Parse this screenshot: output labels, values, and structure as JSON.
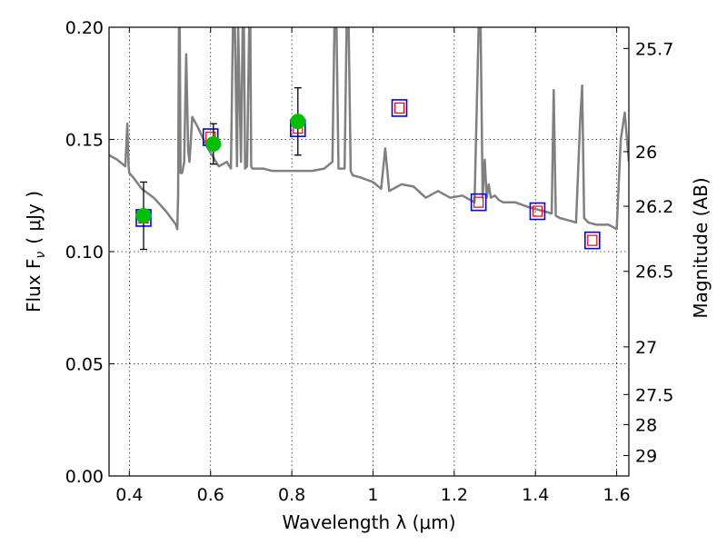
{
  "chart_data": {
    "type": "line",
    "xlabel": "Wavelength  λ (μm)",
    "ylabel": "Flux  F",
    "ylabel_subscript": "ν",
    "ylabel_unit": "( μJy )",
    "y2label": "Magnitude (AB)",
    "xlim": [
      0.35,
      1.63
    ],
    "ylim": [
      0,
      0.2
    ],
    "grid": true,
    "x_ticks": [
      {
        "value": 0.4,
        "label": "0.4"
      },
      {
        "value": 0.6,
        "label": "0.6"
      },
      {
        "value": 0.8,
        "label": "0.8"
      },
      {
        "value": 1.0,
        "label": "1"
      },
      {
        "value": 1.2,
        "label": "1.2"
      },
      {
        "value": 1.4,
        "label": "1.4"
      },
      {
        "value": 1.6,
        "label": "1.6"
      }
    ],
    "y_ticks": [
      {
        "value": 0.0,
        "label": "0.00"
      },
      {
        "value": 0.05,
        "label": "0.05"
      },
      {
        "value": 0.1,
        "label": "0.10"
      },
      {
        "value": 0.15,
        "label": "0.15"
      },
      {
        "value": 0.2,
        "label": "0.20"
      }
    ],
    "mag_ticks": [
      {
        "value": 25.7,
        "label": "25.7"
      },
      {
        "value": 26.0,
        "label": "26"
      },
      {
        "value": 26.2,
        "label": "26.2"
      },
      {
        "value": 26.5,
        "label": "26.5"
      },
      {
        "value": 27.0,
        "label": "27"
      },
      {
        "value": 27.5,
        "label": "27.5"
      },
      {
        "value": 28.0,
        "label": "28"
      },
      {
        "value": 29.0,
        "label": "29"
      }
    ],
    "colors": {
      "spectrum": "#808080",
      "observed": "#00c000",
      "model_outer": "#0000ff",
      "model_inner": "#ff0000",
      "errorbar": "#000000"
    },
    "series": [
      {
        "kind": "spectrum",
        "x": [
          0.35,
          0.37,
          0.39,
          0.395,
          0.398,
          0.4,
          0.41,
          0.43,
          0.46,
          0.49,
          0.515,
          0.518,
          0.52,
          0.522,
          0.524,
          0.526,
          0.53,
          0.535,
          0.54,
          0.545,
          0.548,
          0.555,
          0.57,
          0.59,
          0.62,
          0.64,
          0.65,
          0.655,
          0.66,
          0.665,
          0.668,
          0.675,
          0.679,
          0.682,
          0.685,
          0.69,
          0.695,
          0.698,
          0.7,
          0.703,
          0.71,
          0.73,
          0.75,
          0.8,
          0.85,
          0.88,
          0.9,
          0.905,
          0.91,
          0.915,
          0.93,
          0.935,
          0.94,
          0.945,
          0.95,
          0.97,
          1.0,
          1.02,
          1.03,
          1.04,
          1.07,
          1.1,
          1.13,
          1.16,
          1.19,
          1.22,
          1.25,
          1.26,
          1.265,
          1.27,
          1.275,
          1.28,
          1.285,
          1.29,
          1.3,
          1.31,
          1.32,
          1.35,
          1.38,
          1.4,
          1.42,
          1.44,
          1.445,
          1.45,
          1.46,
          1.48,
          1.5,
          1.51,
          1.515,
          1.52,
          1.53,
          1.55,
          1.58,
          1.6,
          1.61,
          1.62,
          1.63
        ],
        "y": [
          0.143,
          0.141,
          0.138,
          0.157,
          0.138,
          0.135,
          0.133,
          0.128,
          0.124,
          0.118,
          0.112,
          0.11,
          0.125,
          0.2,
          0.2,
          0.135,
          0.135,
          0.14,
          0.188,
          0.145,
          0.14,
          0.16,
          0.155,
          0.147,
          0.138,
          0.14,
          0.137,
          0.2,
          0.2,
          0.138,
          0.2,
          0.14,
          0.2,
          0.2,
          0.137,
          0.138,
          0.2,
          0.2,
          0.138,
          0.137,
          0.137,
          0.137,
          0.136,
          0.136,
          0.136,
          0.137,
          0.14,
          0.2,
          0.2,
          0.137,
          0.137,
          0.2,
          0.2,
          0.136,
          0.134,
          0.133,
          0.131,
          0.128,
          0.146,
          0.127,
          0.13,
          0.129,
          0.124,
          0.127,
          0.124,
          0.125,
          0.122,
          0.2,
          0.2,
          0.124,
          0.141,
          0.124,
          0.13,
          0.124,
          0.125,
          0.123,
          0.122,
          0.122,
          0.12,
          0.119,
          0.118,
          0.117,
          0.172,
          0.116,
          0.115,
          0.114,
          0.113,
          0.158,
          0.174,
          0.115,
          0.113,
          0.112,
          0.112,
          0.11,
          0.15,
          0.162,
          0.14
        ]
      },
      {
        "kind": "model_photometry",
        "x": [
          0.435,
          0.6,
          0.815,
          1.065,
          1.26,
          1.405,
          1.54
        ],
        "y": [
          0.115,
          0.151,
          0.155,
          0.164,
          0.122,
          0.118,
          0.105
        ]
      },
      {
        "kind": "observed_photometry",
        "x": [
          0.435,
          0.607,
          0.815
        ],
        "y": [
          0.116,
          0.148,
          0.158
        ],
        "err": [
          0.015,
          0.009,
          0.015
        ]
      }
    ]
  }
}
